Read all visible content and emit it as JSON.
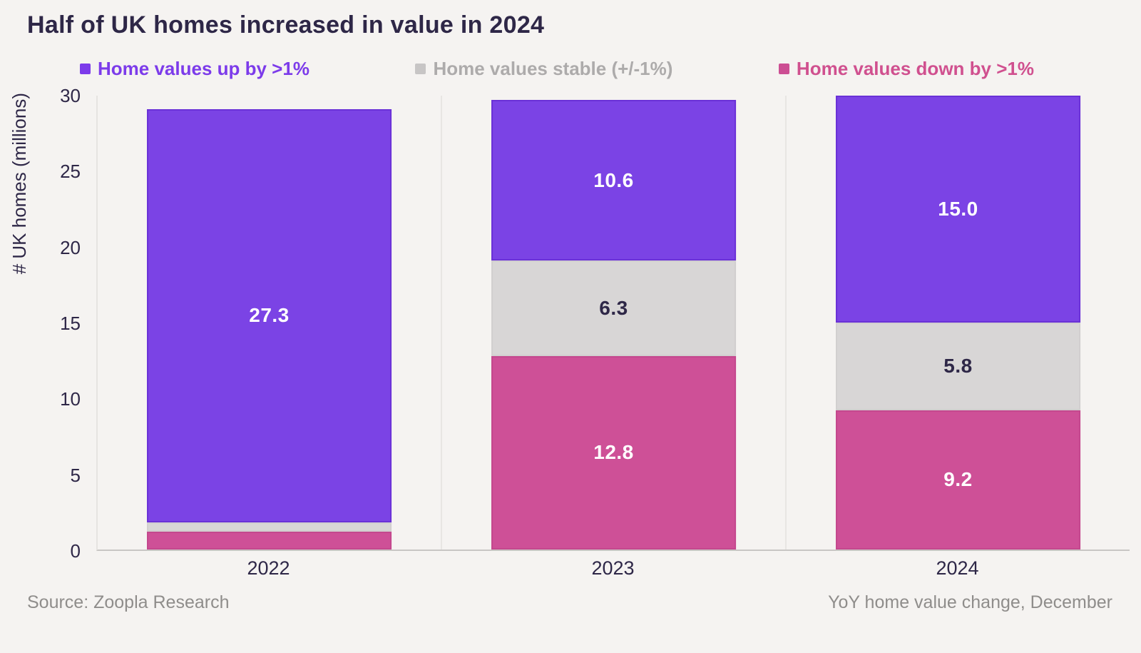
{
  "title": "Half of UK homes increased in value in 2024",
  "legend": [
    {
      "key": "up",
      "label": "Home values up by >1%",
      "swatch_color": "#7C3BEA",
      "text_color": "#7C3BEA"
    },
    {
      "key": "stable",
      "label": "Home values stable (+/-1%)",
      "swatch_color": "#C7C5C5",
      "text_color": "#ADABAB"
    },
    {
      "key": "down",
      "label": "Home values down by >1%",
      "swatch_color": "#CC4E93",
      "text_color": "#D0508F"
    }
  ],
  "chart_data": {
    "type": "bar",
    "stacked": true,
    "title": "Half of UK homes increased in value in 2024",
    "categories": [
      "2022",
      "2023",
      "2024"
    ],
    "series": [
      {
        "key": "down",
        "name": "Home values down by >1%",
        "color": "#CE5097",
        "border_color": "#C4488E",
        "label_color": "#FFFFFF",
        "values": [
          1.2,
          12.8,
          9.2
        ],
        "labels": [
          "",
          "12.8",
          "9.2"
        ]
      },
      {
        "key": "stable",
        "name": "Home values stable (+/-1%)",
        "color": "#D8D6D6",
        "border_color": "#D1CFCF",
        "label_color": "#2E2747",
        "values": [
          0.6,
          6.3,
          5.8
        ],
        "labels": [
          "",
          "6.3",
          "5.8"
        ]
      },
      {
        "key": "up",
        "name": "Home values up by >1%",
        "color": "#7B43E5",
        "border_color": "#6A31D7",
        "label_color": "#FFFFFF",
        "values": [
          27.3,
          10.6,
          15.0
        ],
        "labels": [
          "27.3",
          "10.6",
          "15.0"
        ]
      }
    ],
    "xlabel": "",
    "ylabel": "# UK homes (millions)",
    "yticks": [
      0,
      5,
      10,
      15,
      20,
      25,
      30
    ],
    "ylim": [
      0,
      30
    ],
    "grid": false,
    "legend_position": "top",
    "accent_colors": {
      "background": "#F5F3F1",
      "text_dark": "#2E2747",
      "axis_line": "#C8C6C4",
      "separator_line": "#E8E6E3"
    }
  },
  "footer": {
    "source": "Source: Zoopla Research",
    "note": "YoY home value change, December"
  }
}
